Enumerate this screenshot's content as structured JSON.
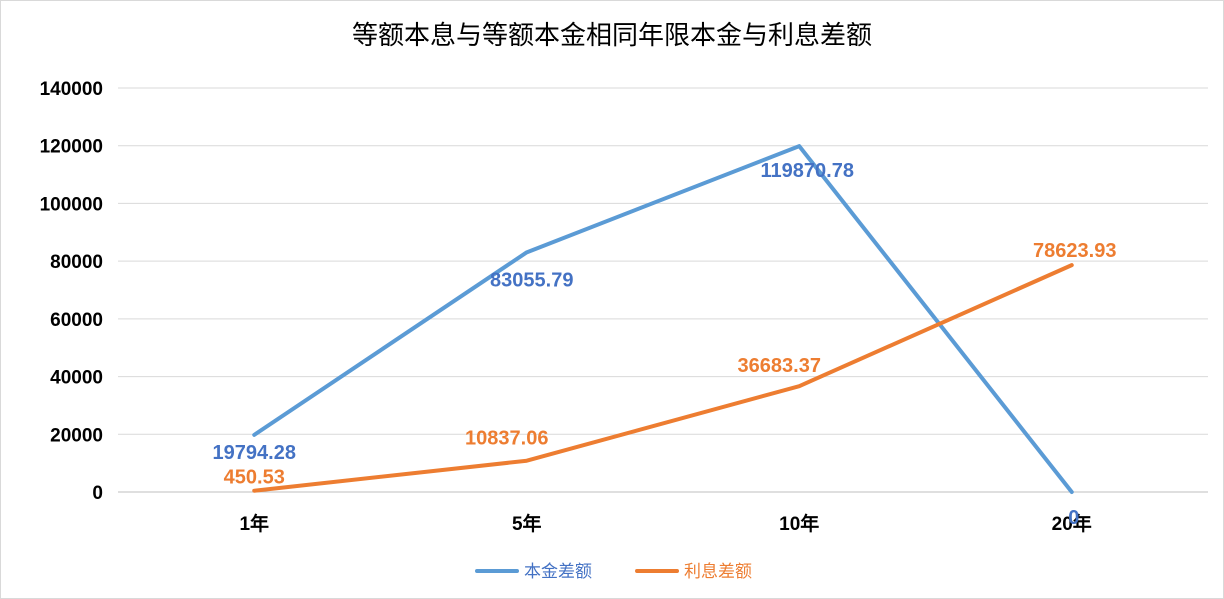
{
  "chart_data": {
    "type": "line",
    "title": "等额本息与等额本金相同年限本金与利息差额",
    "xlabel": "",
    "ylabel": "",
    "categories": [
      "1年",
      "5年",
      "10年",
      "20年"
    ],
    "ylim": [
      0,
      140000
    ],
    "yticks": [
      0,
      20000,
      40000,
      60000,
      80000,
      100000,
      120000,
      140000
    ],
    "ytick_labels": [
      "0",
      "20000",
      "40000",
      "60000",
      "80000",
      "100000",
      "120000",
      "140000"
    ],
    "grid": true,
    "legend_position": "bottom",
    "series": [
      {
        "name": "本金差额",
        "color": "#5b9bd5",
        "values": [
          19794.28,
          83055.79,
          119870.78,
          0
        ],
        "labels": [
          "19794.28",
          "83055.79",
          "119870.78",
          "0"
        ],
        "label_color": "#4472c4"
      },
      {
        "name": "利息差额",
        "color": "#ed7d31",
        "values": [
          450.53,
          10837.06,
          36683.37,
          78623.93
        ],
        "labels": [
          "450.53",
          "10837.06",
          "36683.37",
          "78623.93"
        ],
        "label_color": "#ed7d31"
      }
    ]
  }
}
